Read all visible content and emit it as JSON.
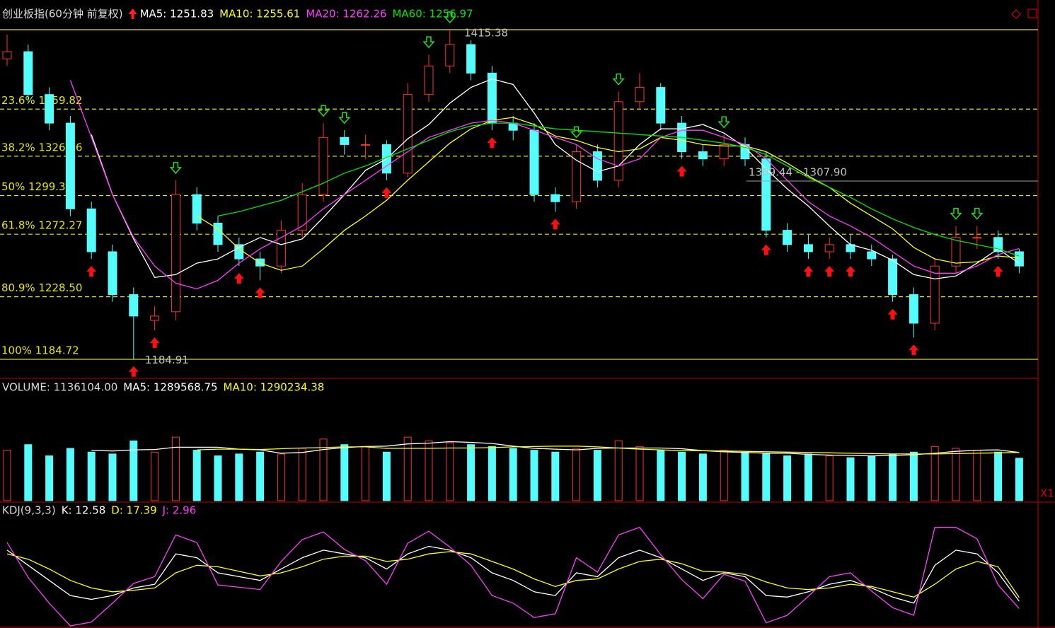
{
  "chart_data": [
    {
      "type": "candlestick",
      "title": "创业板指(60分钟 前复权)",
      "open": [
        1395,
        1400,
        1370,
        1350,
        1290,
        1260,
        1230,
        1212,
        1218,
        1300,
        1280,
        1265,
        1255,
        1250,
        1275,
        1300,
        1340,
        1335,
        1335,
        1315,
        1370,
        1390,
        1405,
        1385,
        1350,
        1345,
        1300,
        1295,
        1330,
        1310,
        1365,
        1375,
        1350,
        1330,
        1325,
        1335,
        1325,
        1275,
        1265,
        1260,
        1265,
        1260,
        1255,
        1230,
        1210,
        1250,
        1270,
        1270,
        1260
      ],
      "high": [
        1412,
        1405,
        1375,
        1355,
        1295,
        1265,
        1235,
        1222,
        1310,
        1305,
        1285,
        1270,
        1260,
        1282,
        1308,
        1350,
        1345,
        1342,
        1338,
        1378,
        1398,
        1415.38,
        1408,
        1390,
        1355,
        1350,
        1305,
        1335,
        1335,
        1372,
        1385,
        1378,
        1355,
        1335,
        1342,
        1340,
        1330,
        1280,
        1272,
        1270,
        1272,
        1265,
        1258,
        1235,
        1255,
        1278,
        1278,
        1275,
        1262
      ],
      "low": [
        1390,
        1365,
        1345,
        1285,
        1255,
        1225,
        1184.91,
        1205,
        1212,
        1275,
        1260,
        1250,
        1240,
        1245,
        1270,
        1295,
        1328,
        1325,
        1310,
        1312,
        1365,
        1385,
        1380,
        1345,
        1338,
        1295,
        1288,
        1290,
        1305,
        1305,
        1360,
        1345,
        1325,
        1320,
        1320,
        1320,
        1270,
        1260,
        1255,
        1255,
        1255,
        1250,
        1225,
        1200,
        1205,
        1245,
        1262,
        1255,
        1245
      ],
      "close": [
        1400,
        1370,
        1350,
        1290,
        1260,
        1230,
        1215,
        1215,
        1300,
        1280,
        1265,
        1255,
        1250,
        1275,
        1300,
        1340,
        1335,
        1335,
        1315,
        1370,
        1390,
        1405,
        1385,
        1350,
        1345,
        1300,
        1295,
        1330,
        1310,
        1365,
        1375,
        1350,
        1330,
        1325,
        1335,
        1325,
        1275,
        1265,
        1260,
        1265,
        1260,
        1255,
        1230,
        1210,
        1250,
        1270,
        1270,
        1260,
        1250
      ],
      "series": [
        {
          "name": "MA5: 1251.83",
          "color": "#ffffff",
          "values": [
            null,
            null,
            null,
            null,
            1342,
            1300,
            1269,
            1242,
            1244,
            1252,
            1255,
            1263,
            1270,
            1265,
            1269,
            1284,
            1300,
            1317,
            1325,
            1339,
            1349,
            1364,
            1375,
            1381,
            1377,
            1357,
            1335,
            1324,
            1316,
            1320,
            1335,
            1346,
            1346,
            1349,
            1343,
            1333,
            1318,
            1304,
            1292,
            1278,
            1265,
            1261,
            1254,
            1244,
            1241,
            1243,
            1252,
            1262,
            1251.83
          ]
        },
        {
          "name": "MA10: 1255.61",
          "color": "#ffff00",
          "values": [
            null,
            null,
            null,
            null,
            null,
            null,
            null,
            null,
            null,
            1285,
            1276,
            1262,
            1252,
            1247,
            1250,
            1262,
            1275,
            1285,
            1296,
            1310,
            1323,
            1336,
            1346,
            1352,
            1354,
            1349,
            1341,
            1338,
            1333,
            1330,
            1332,
            1340,
            1338,
            1335,
            1334,
            1334,
            1330,
            1322,
            1313,
            1305,
            1294,
            1285,
            1276,
            1263,
            1255,
            1252,
            1253,
            1257,
            1255.61
          ]
        },
        {
          "name": "MA20: 1262.26",
          "color": "#ff3cff",
          "values": [
            null,
            null,
            null,
            1380,
            1340,
            1300,
            1270,
            1250,
            1238,
            1234,
            1240,
            1252,
            1262,
            1270,
            1278,
            1290,
            1300,
            1310,
            1320,
            1330,
            1340,
            1345,
            1350,
            1352,
            1350,
            1345,
            1340,
            1335,
            1325,
            1320,
            1325,
            1340,
            1345,
            1345,
            1340,
            1335,
            1325,
            1310,
            1295,
            1285,
            1278,
            1270,
            1260,
            1250,
            1245,
            1245,
            1250,
            1258,
            1262.26
          ]
        },
        {
          "name": "MA60: 1256.97",
          "color": "#00e600",
          "values": [
            null,
            null,
            null,
            null,
            null,
            null,
            null,
            null,
            null,
            null,
            1285,
            1288,
            1292,
            1296,
            1302,
            1308,
            1315,
            1320,
            1326,
            1332,
            1338,
            1344,
            1348,
            1350,
            1350,
            1348,
            1346,
            1345,
            1344,
            1343,
            1342,
            1341,
            1340,
            1338,
            1336,
            1333,
            1328,
            1320,
            1312,
            1305,
            1298,
            1290,
            1283,
            1277,
            1272,
            1268,
            1265,
            1262,
            1256.97
          ]
        }
      ],
      "ylim": [
        1171.4,
        1432.2
      ],
      "fib_levels": [
        {
          "value": 1415.38,
          "label": "1415.38"
        },
        {
          "value": 1359.82,
          "label": "23.6% 1359.82"
        },
        {
          "value": 1326.86,
          "label": "38.2% 1326.86"
        },
        {
          "value": 1299.31,
          "label": "50% 1299.31"
        },
        {
          "value": 1272.27,
          "label": "61.8% 1272.27"
        },
        {
          "value": 1228.5,
          "label": "80.9% 1228.50"
        },
        {
          "value": 1184.72,
          "label": "100% 1184.72"
        }
      ],
      "annotations": [
        {
          "text": "1184.91",
          "value": 1184.91
        },
        {
          "text": "1309.44 - 1307.90",
          "value": 1309.44
        }
      ],
      "buy_signals": [
        4,
        6,
        7,
        11,
        12,
        18,
        23,
        26,
        32,
        36,
        38,
        39,
        40,
        42,
        43,
        47
      ],
      "sell_signals": [
        8,
        15,
        16,
        20,
        21,
        27,
        29,
        34,
        45,
        46
      ]
    },
    {
      "type": "bar",
      "name": "VOLUME: 1136104.00",
      "scale_label": "X1",
      "values": [
        1350000,
        1500000,
        1200000,
        1400000,
        1300000,
        1250000,
        1600000,
        1300000,
        1700000,
        1350000,
        1200000,
        1250000,
        1300000,
        1250000,
        1400000,
        1650000,
        1500000,
        1450000,
        1300000,
        1700000,
        1600000,
        1550000,
        1500000,
        1450000,
        1400000,
        1350000,
        1300000,
        1400000,
        1350000,
        1600000,
        1450000,
        1350000,
        1300000,
        1250000,
        1350000,
        1300000,
        1250000,
        1200000,
        1250000,
        1200000,
        1150000,
        1200000,
        1250000,
        1300000,
        1450000,
        1400000,
        1350000,
        1300000,
        1136104
      ],
      "series": [
        {
          "name": "MA5: 1289568.75",
          "color": "#ffffff",
          "values": [
            null,
            null,
            null,
            null,
            1350000,
            1330000,
            1360000,
            1370000,
            1430000,
            1430000,
            1430000,
            1380000,
            1360000,
            1270000,
            1290000,
            1370000,
            1420000,
            1450000,
            1460000,
            1520000,
            1540000,
            1580000,
            1560000,
            1530000,
            1460000,
            1400000,
            1380000,
            1360000,
            1400000,
            1410000,
            1410000,
            1410000,
            1390000,
            1340000,
            1310000,
            1290000,
            1270000,
            1270000,
            1240000,
            1220000,
            1210000,
            1200000,
            1210000,
            1230000,
            1270000,
            1320000,
            1350000,
            1360000,
            1289568.75
          ]
        },
        {
          "name": "MA10: 1290234.38",
          "color": "#ffff00",
          "values": [
            null,
            null,
            null,
            null,
            null,
            null,
            null,
            null,
            null,
            1360000,
            1380000,
            1380000,
            1370000,
            1390000,
            1410000,
            1420000,
            1440000,
            1440000,
            1400000,
            1400000,
            1400000,
            1410000,
            1410000,
            1420000,
            1440000,
            1450000,
            1460000,
            1460000,
            1440000,
            1410000,
            1380000,
            1360000,
            1340000,
            1340000,
            1330000,
            1320000,
            1310000,
            1300000,
            1290000,
            1280000,
            1270000,
            1260000,
            1250000,
            1250000,
            1250000,
            1260000,
            1270000,
            1280000,
            1290234.38
          ]
        }
      ],
      "ylim": [
        0,
        2800000
      ]
    },
    {
      "type": "line",
      "title": "KDJ(9,3,3)",
      "series": [
        {
          "name": "K: 12.58",
          "color": "#ffffff",
          "values": [
            80,
            60,
            40,
            20,
            15,
            20,
            30,
            35,
            75,
            70,
            50,
            45,
            40,
            55,
            70,
            80,
            75,
            70,
            55,
            75,
            85,
            80,
            70,
            50,
            40,
            25,
            20,
            50,
            45,
            70,
            80,
            70,
            55,
            40,
            50,
            45,
            20,
            18,
            25,
            35,
            40,
            30,
            18,
            10,
            60,
            80,
            75,
            50,
            12.58
          ]
        },
        {
          "name": "D: 17.39",
          "color": "#ffff00",
          "values": [
            75,
            68,
            55,
            40,
            30,
            25,
            27,
            30,
            50,
            60,
            58,
            52,
            46,
            50,
            58,
            68,
            72,
            72,
            65,
            68,
            75,
            78,
            75,
            65,
            55,
            42,
            32,
            40,
            42,
            55,
            65,
            68,
            62,
            52,
            51,
            48,
            38,
            30,
            28,
            30,
            35,
            32,
            25,
            18,
            35,
            55,
            65,
            58,
            17.39
          ]
        },
        {
          "name": "J: 2.96",
          "color": "#ff3cff",
          "values": [
            90,
            44,
            10,
            -20,
            -15,
            10,
            36,
            45,
            100,
            90,
            34,
            31,
            28,
            65,
            94,
            104,
            81,
            66,
            35,
            89,
            105,
            84,
            60,
            20,
            10,
            -9,
            -4,
            70,
            51,
            100,
            110,
            74,
            41,
            16,
            48,
            39,
            -16,
            -6,
            19,
            45,
            50,
            26,
            4,
            -6,
            110,
            110,
            95,
            34,
            2.96
          ]
        }
      ],
      "ylim": [
        -20,
        120
      ]
    }
  ]
}
